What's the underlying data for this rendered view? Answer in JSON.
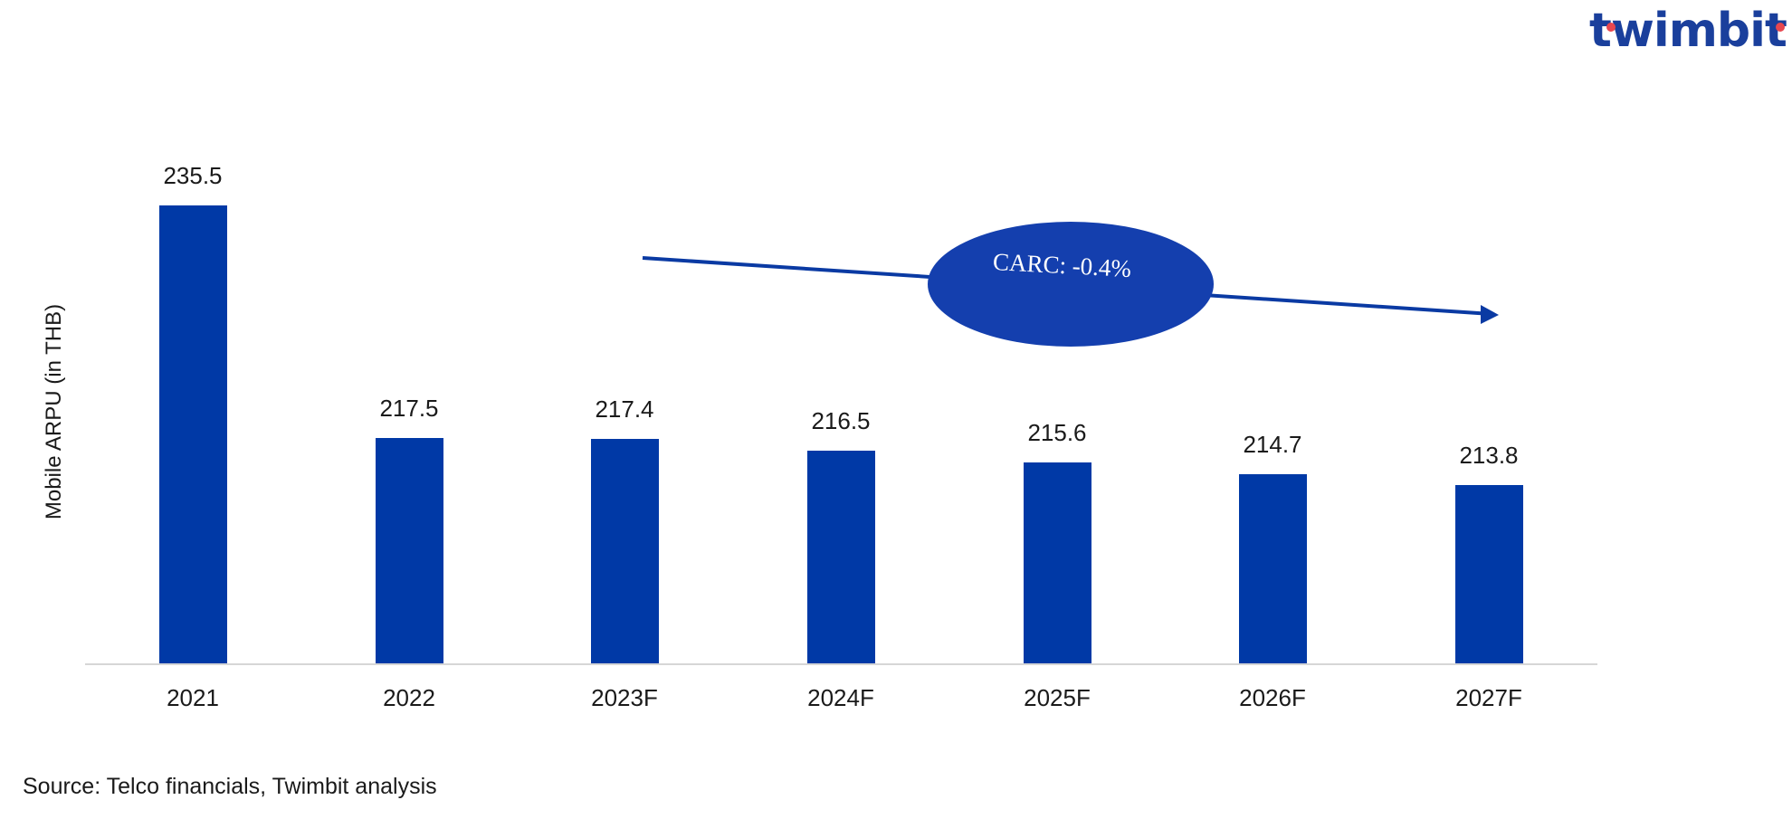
{
  "brand": {
    "logo_text": "twimbit",
    "primary_color": "#1a3f9c",
    "accent_color": "#e8474f"
  },
  "chart_data": {
    "type": "bar",
    "title": "",
    "xlabel": "",
    "ylabel": "Mobile ARPU (in THB)",
    "categories": [
      "2021",
      "2022",
      "2023F",
      "2024F",
      "2025F",
      "2026F",
      "2027F"
    ],
    "values": [
      235.5,
      217.5,
      217.4,
      216.5,
      215.6,
      214.7,
      213.8
    ],
    "value_labels": [
      "235.5",
      "217.5",
      "217.4",
      "216.5",
      "215.6",
      "214.7",
      "213.8"
    ],
    "bar_color": "#0039a6",
    "grid": false,
    "y_axis_visible": false,
    "annotations": [
      {
        "type": "trend-arrow",
        "label": "CARC: -0.4%",
        "from_category": "2023F",
        "to_category": "2027F",
        "color": "#1a3f9c"
      }
    ]
  },
  "annotation": {
    "label": "CARC: -0.4%"
  },
  "footer": {
    "source": "Source: Telco financials, Twimbit analysis"
  }
}
